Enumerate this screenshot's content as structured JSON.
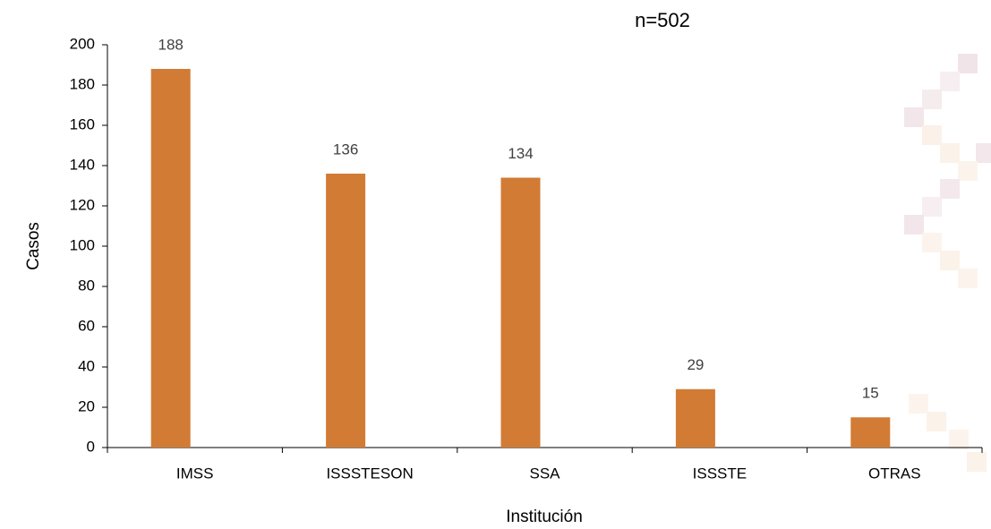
{
  "chart_data": {
    "type": "bar",
    "title": "n=502",
    "x_label": "Institución",
    "y_label": "Casos",
    "categories": [
      "IMSS",
      "ISSSTESON",
      "SSA",
      "ISSSTE",
      "OTRAS"
    ],
    "values": [
      188,
      136,
      134,
      29,
      15
    ],
    "color": "#d27b35",
    "ylim": [
      0,
      200
    ],
    "yticks": [
      0,
      20,
      40,
      60,
      80,
      100,
      120,
      140,
      160,
      180,
      200
    ],
    "grid": false
  }
}
